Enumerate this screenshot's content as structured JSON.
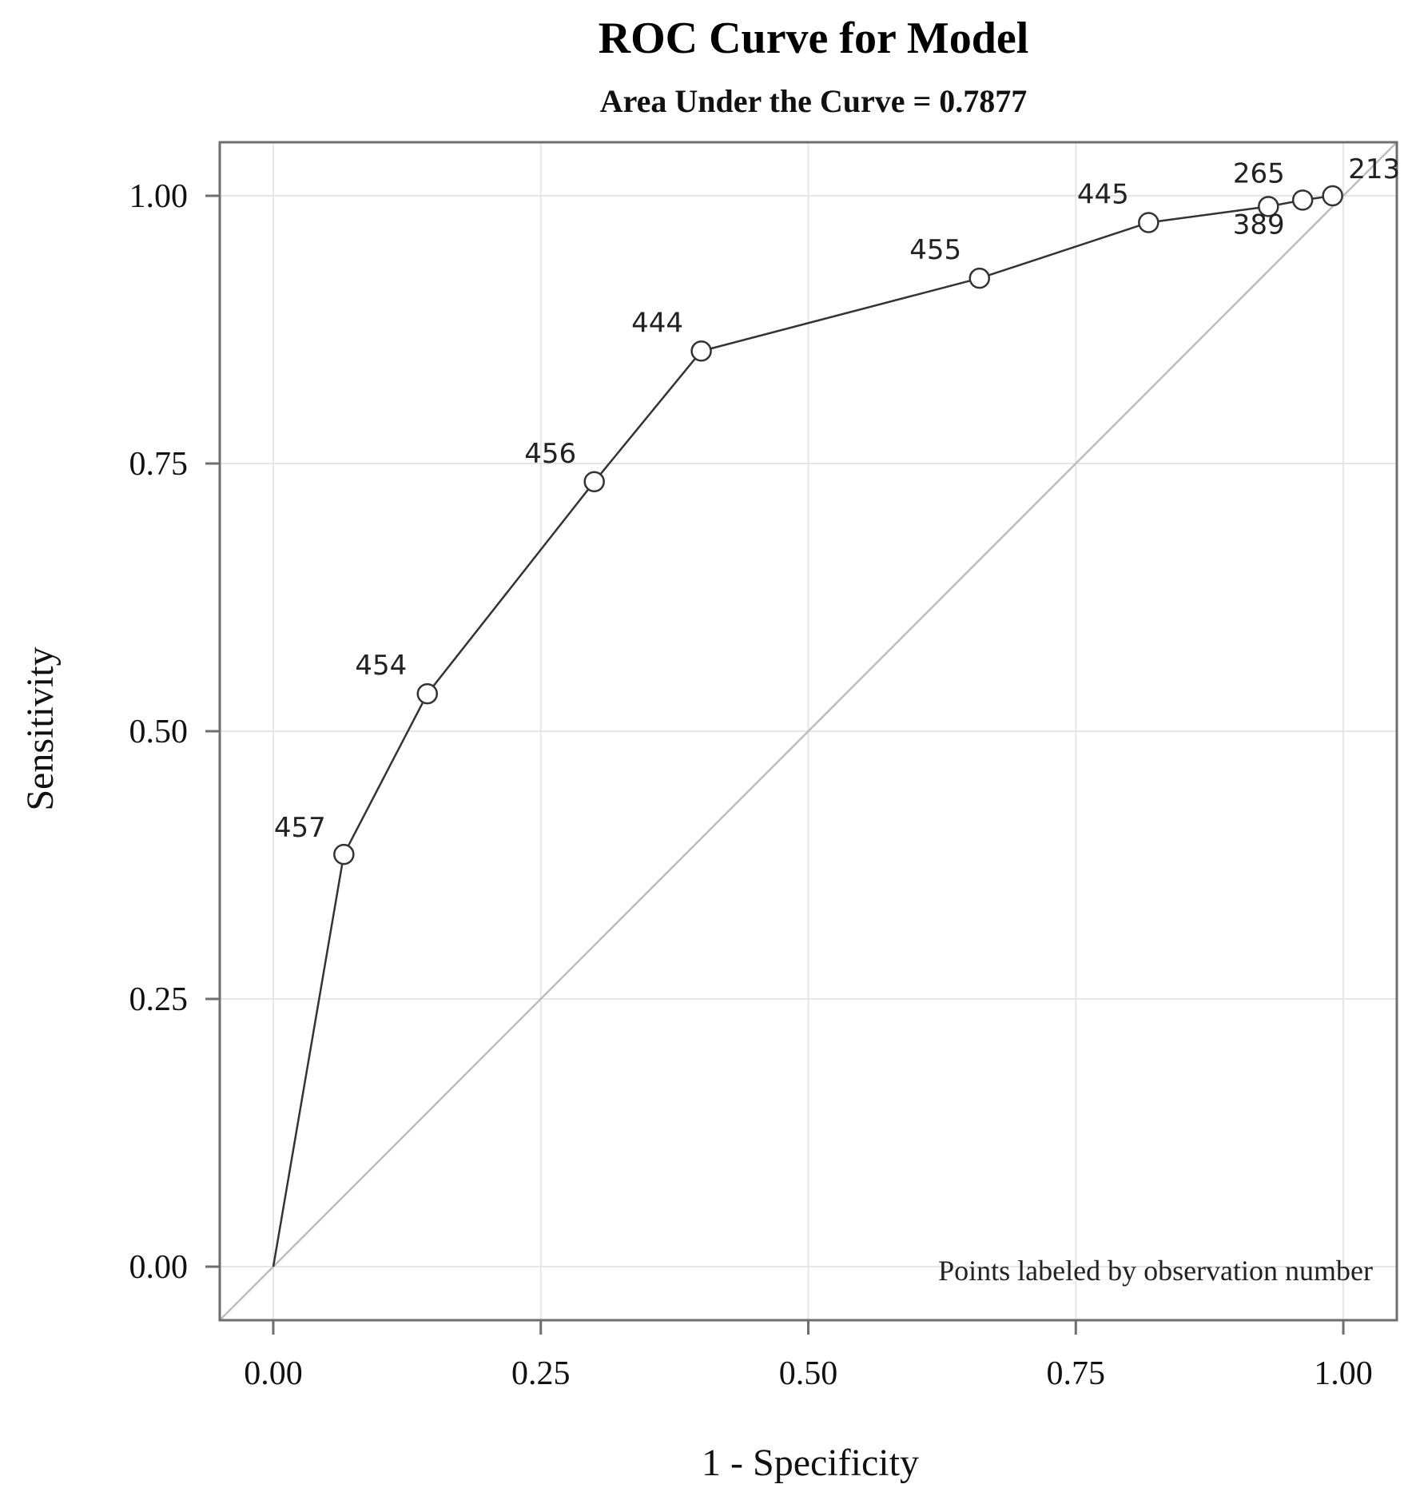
{
  "chart_data": {
    "type": "line",
    "title": "ROC Curve for Model",
    "subtitle": "Area Under the Curve = 0.7877",
    "xlabel": "1 - Specificity",
    "ylabel": "Sensitivity",
    "xlim": [
      -0.05,
      1.05
    ],
    "ylim": [
      -0.05,
      1.05
    ],
    "xticks": [
      "0.00",
      "0.25",
      "0.50",
      "0.75",
      "1.00"
    ],
    "yticks": [
      "0.00",
      "0.25",
      "0.50",
      "0.75",
      "1.00"
    ],
    "grid": true,
    "reference_line": "diagonal",
    "note": "Points labeled by observation number",
    "series": [
      {
        "x": [
          0.0,
          0.066,
          0.144,
          0.3,
          0.4,
          0.66,
          0.818,
          0.93,
          0.962,
          0.99
        ],
        "y": [
          0.0,
          0.385,
          0.535,
          0.733,
          0.855,
          0.923,
          0.975,
          0.99,
          0.996,
          1.0
        ],
        "point_labels": [
          "",
          "457",
          "454",
          "456",
          "444",
          "455",
          "445",
          "265",
          "389",
          "213"
        ]
      }
    ]
  }
}
